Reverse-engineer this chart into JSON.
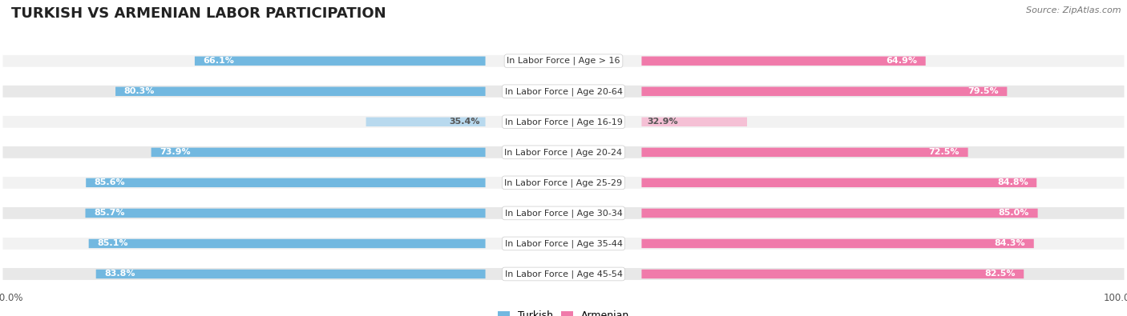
{
  "title": "Turkish vs Armenian Labor Participation",
  "source": "Source: ZipAtlas.com",
  "categories": [
    "In Labor Force | Age > 16",
    "In Labor Force | Age 20-64",
    "In Labor Force | Age 16-19",
    "In Labor Force | Age 20-24",
    "In Labor Force | Age 25-29",
    "In Labor Force | Age 30-34",
    "In Labor Force | Age 35-44",
    "In Labor Force | Age 45-54"
  ],
  "turkish_values": [
    66.1,
    80.3,
    35.4,
    73.9,
    85.6,
    85.7,
    85.1,
    83.8
  ],
  "armenian_values": [
    64.9,
    79.5,
    32.9,
    72.5,
    84.8,
    85.0,
    84.3,
    82.5
  ],
  "turkish_color": "#72b8e0",
  "turkish_color_light": "#b8d9ee",
  "armenian_color": "#f07aaa",
  "armenian_color_light": "#f5c0d5",
  "row_bg_colors": [
    "#f2f2f2",
    "#e8e8e8"
  ],
  "max_value": 100.0,
  "title_fontsize": 13,
  "label_fontsize": 8,
  "value_fontsize": 8,
  "legend_fontsize": 9,
  "tick_fontsize": 8.5
}
